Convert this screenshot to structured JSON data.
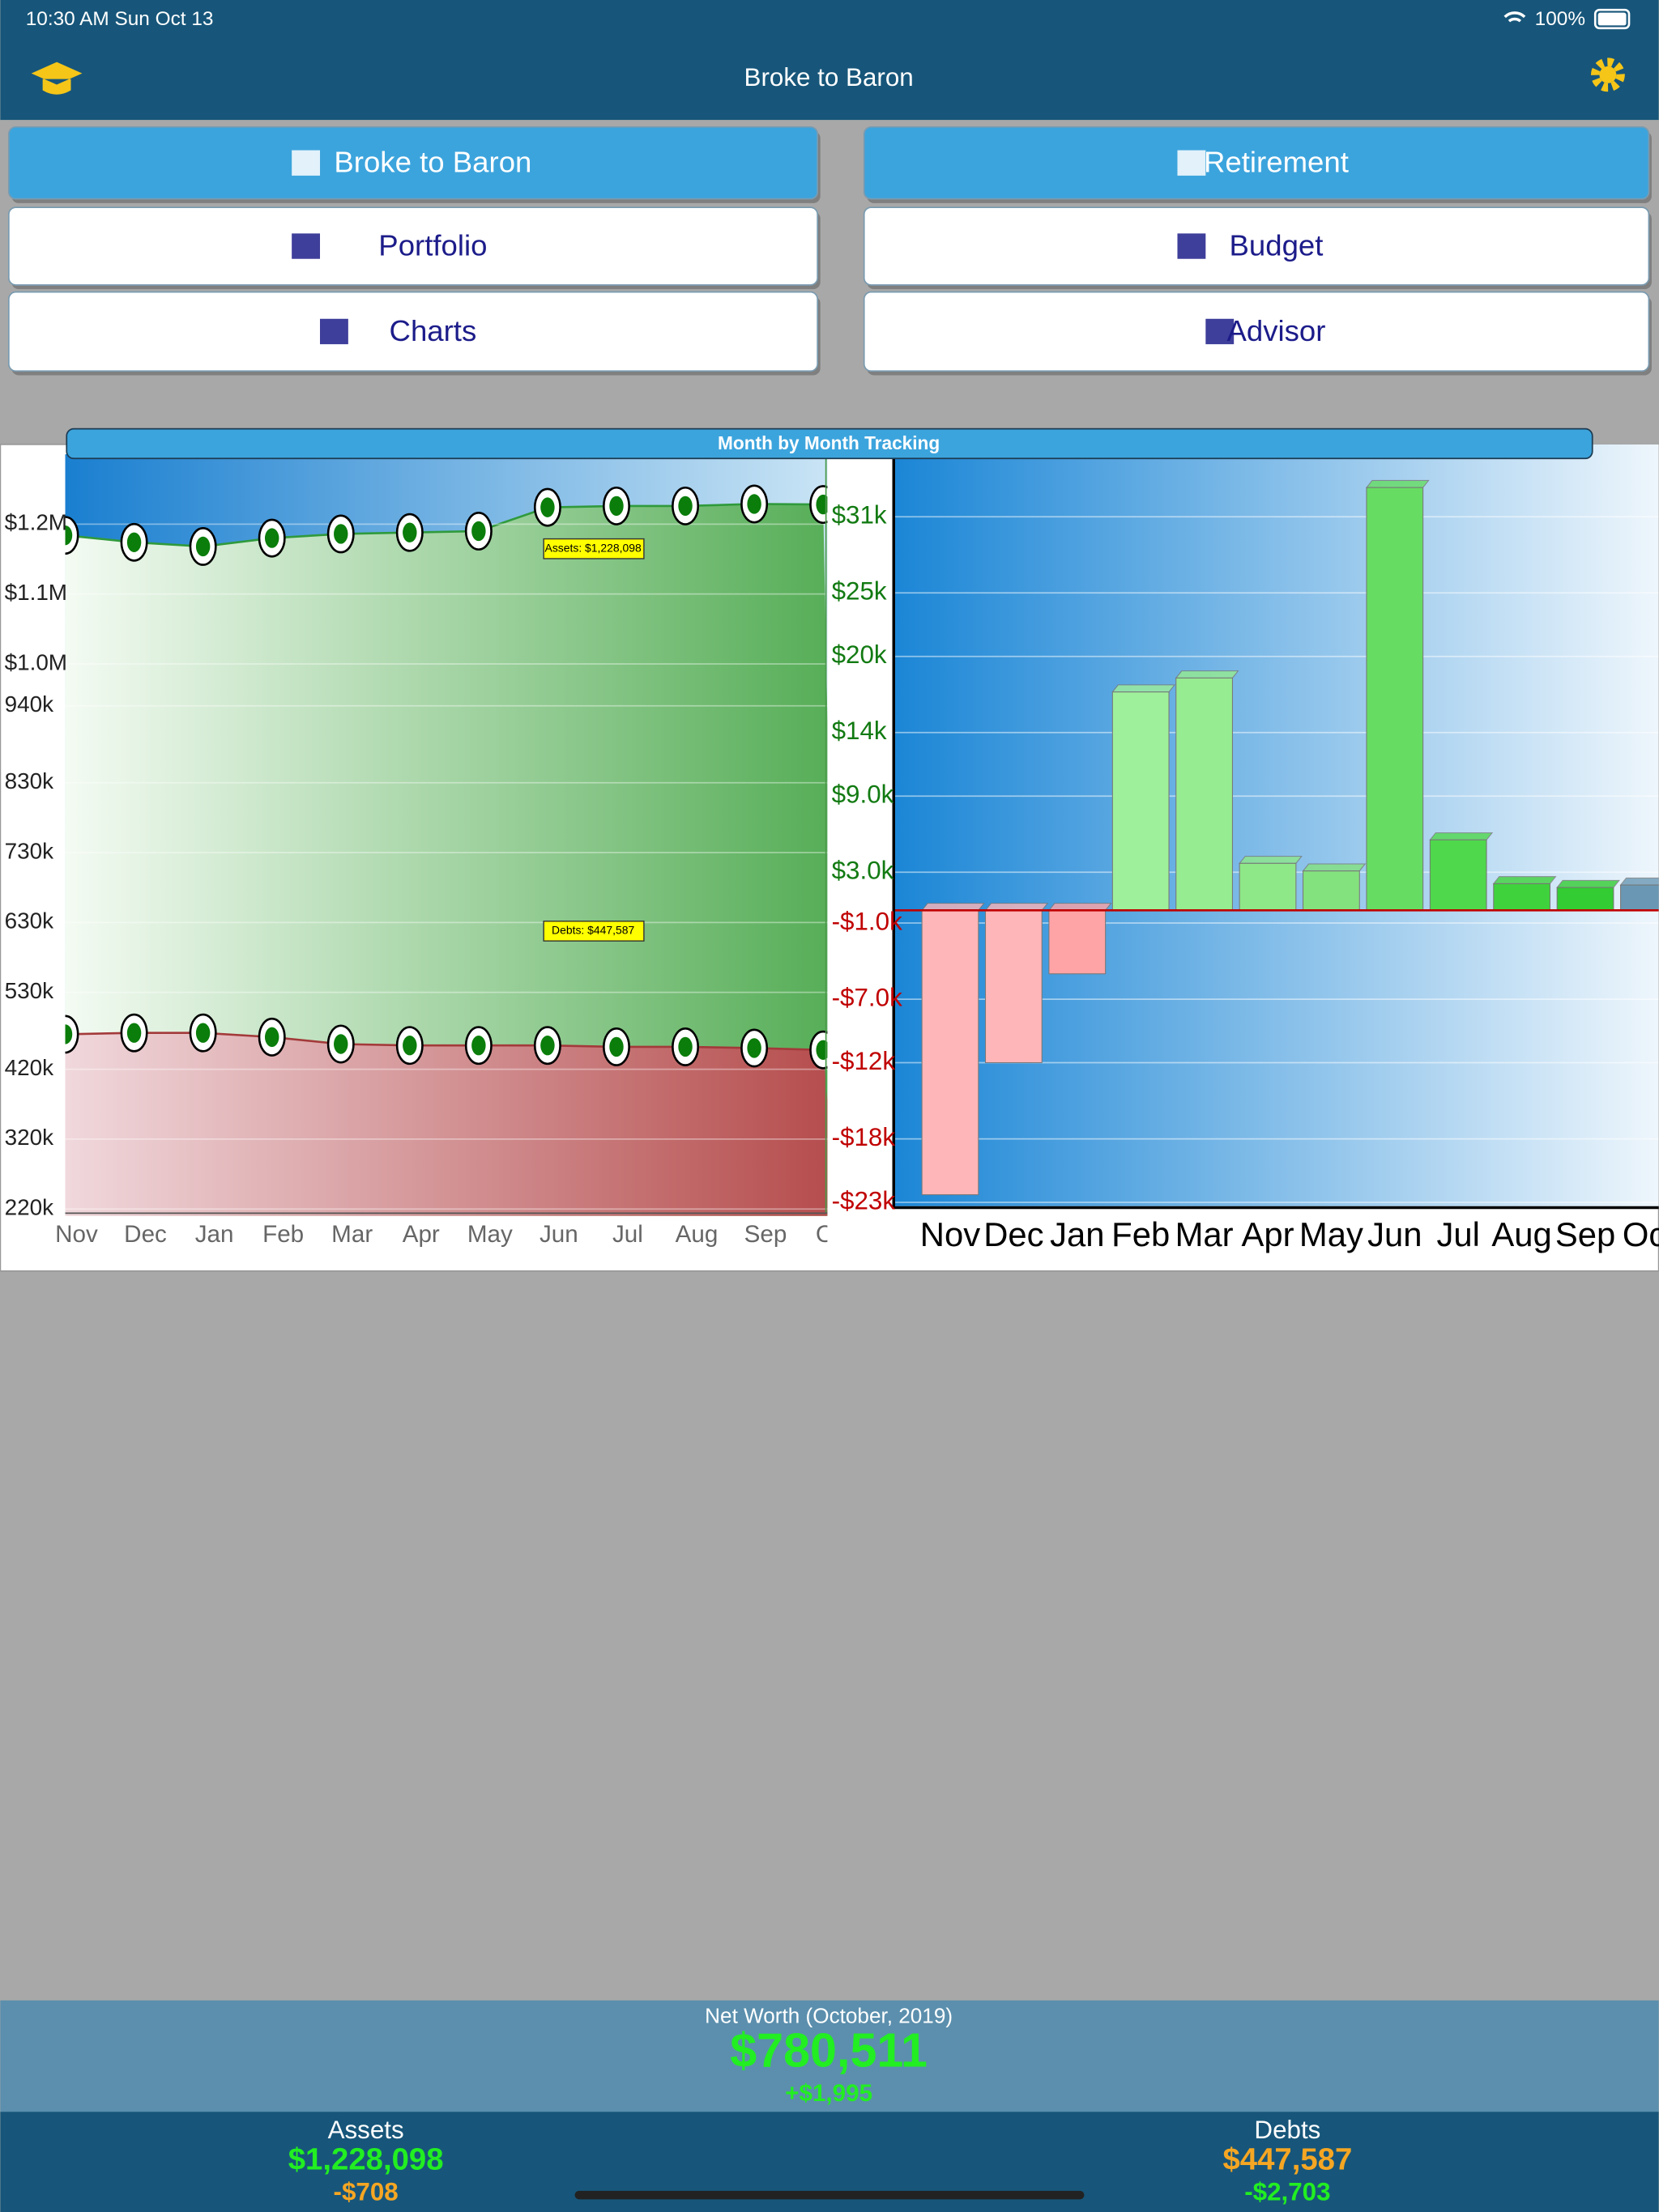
{
  "status_bar": {
    "time": "10:30 AM   Sun Oct 13",
    "battery": "100%"
  },
  "nav_bar": {
    "title": "Broke to Baron"
  },
  "menu": {
    "buttons": [
      "Broke to Baron",
      "Retirement",
      "Portfolio",
      "Budget",
      "Charts",
      "Advisor"
    ]
  },
  "panel": {
    "title": "Month by Month Tracking"
  },
  "chart_data": [
    {
      "type": "area",
      "categories": [
        "Nov",
        "Dec",
        "Jan",
        "Feb",
        "Mar",
        "Apr",
        "May",
        "Jun",
        "Jul",
        "Aug",
        "Sep",
        "Oct"
      ],
      "series": [
        {
          "name": "Assets",
          "color": "#2f9a3c",
          "values": [
            1184000,
            1174000,
            1168000,
            1180000,
            1186000,
            1188000,
            1190000,
            1224000,
            1226000,
            1226000,
            1228806,
            1228098
          ]
        },
        {
          "name": "Debts",
          "color": "#a33a3a",
          "values": [
            470000,
            472000,
            472000,
            466000,
            456000,
            454000,
            454000,
            454000,
            452000,
            452000,
            450290,
            447587
          ]
        }
      ],
      "annotations": [
        "Assets: $1,228,098",
        "Debts: $447,587"
      ],
      "ylim": [
        220000,
        1300000
      ],
      "yticks": [
        {
          "value": 1200000,
          "label": "$1.2M"
        },
        {
          "value": 1100000,
          "label": "$1.1M"
        },
        {
          "value": 1000000,
          "label": "$1.0M"
        },
        {
          "value": 940000,
          "label": "940k"
        },
        {
          "value": 830000,
          "label": "830k"
        },
        {
          "value": 730000,
          "label": "730k"
        },
        {
          "value": 630000,
          "label": "630k"
        },
        {
          "value": 530000,
          "label": "530k"
        },
        {
          "value": 420000,
          "label": "420k"
        },
        {
          "value": 320000,
          "label": "320k"
        },
        {
          "value": 220000,
          "label": "220k"
        }
      ],
      "grid": true
    },
    {
      "type": "bar",
      "categories": [
        "Nov",
        "Dec",
        "Jan",
        "Feb",
        "Mar",
        "Apr",
        "May",
        "Jun",
        "Jul",
        "Aug",
        "Sep",
        "Oct"
      ],
      "values": [
        -22400,
        -12000,
        -5000,
        17200,
        18300,
        3700,
        3100,
        33300,
        5550,
        2100,
        1800,
        1995
      ],
      "colors": [
        "#ffb6b8",
        "#ffb6b8",
        "#ffa4a6",
        "#9ef09a",
        "#96ec90",
        "#8ee888",
        "#84e27e",
        "#66dd62",
        "#4fd84c",
        "#3fd23c",
        "#33cc33",
        "#6a98b4"
      ],
      "ylim": [
        -23300,
        36700
      ],
      "yticks": [
        {
          "value": 31000,
          "label": "$31k"
        },
        {
          "value": 25000,
          "label": "$25k"
        },
        {
          "value": 20000,
          "label": "$20k"
        },
        {
          "value": 14000,
          "label": "$14k"
        },
        {
          "value": 9000,
          "label": "$9.0k"
        },
        {
          "value": 3000,
          "label": "$3.0k"
        },
        {
          "value": -1000,
          "label": "-$1.0k"
        },
        {
          "value": -7000,
          "label": "-$7.0k"
        },
        {
          "value": -12000,
          "label": "-$12k"
        },
        {
          "value": -18000,
          "label": "-$18k"
        },
        {
          "value": -23000,
          "label": "-$23k"
        }
      ],
      "grid": true
    }
  ],
  "footer": {
    "net_worth_label": "Net Worth (October, 2019)",
    "net_worth": "$780,511",
    "net_worth_change": "+$1,995",
    "assets_label": "Assets",
    "assets": "$1,228,098",
    "assets_change": "-$708",
    "debts_label": "Debts",
    "debts": "$447,587",
    "debts_change": "-$2,703"
  }
}
